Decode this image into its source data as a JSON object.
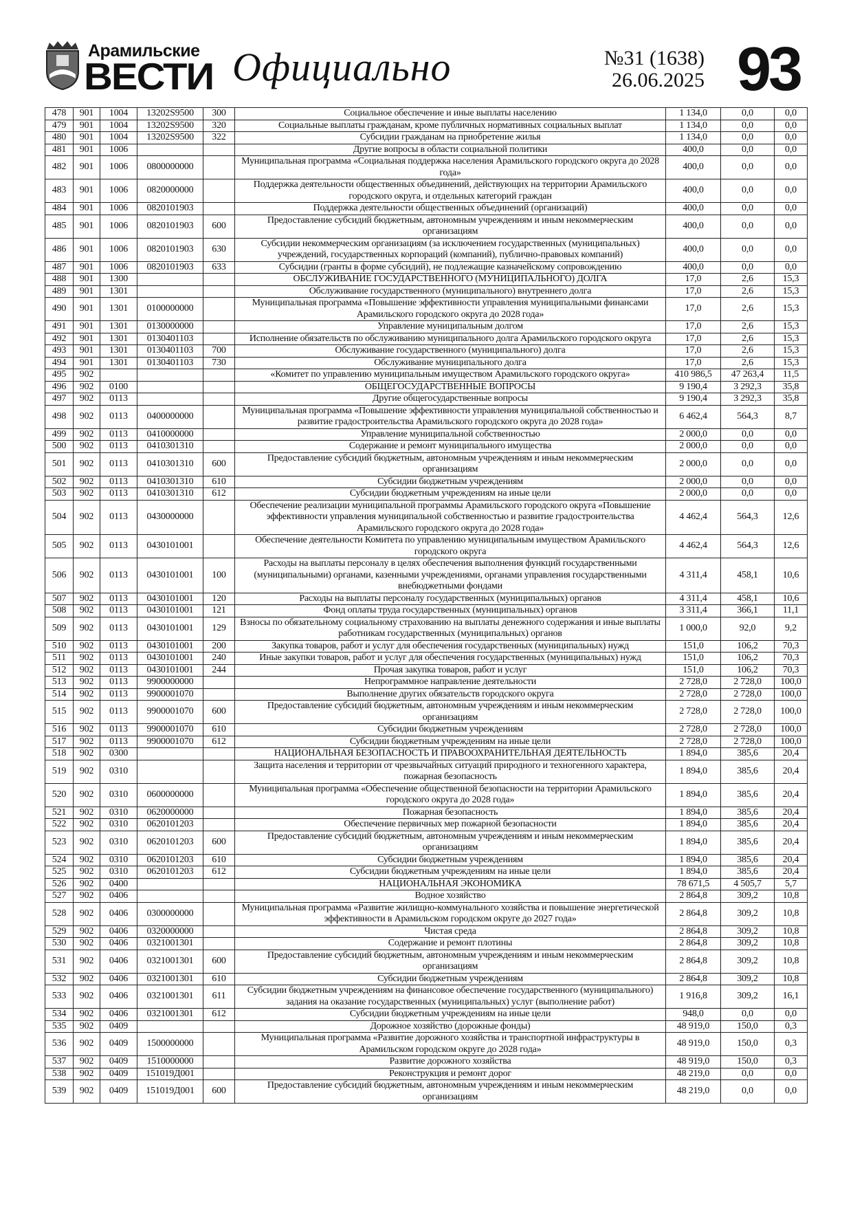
{
  "header": {
    "masthead_top": "Арамильские",
    "masthead": "ВЕСТИ",
    "section": "Официально",
    "issue": "№31 (1638)",
    "date": "26.06.2025",
    "page": "93"
  },
  "table": {
    "rows": [
      [
        "478",
        "901",
        "1004",
        "13202S9500",
        "300",
        "Социальное обеспечение и иные выплаты населению",
        "1 134,0",
        "0,0",
        "0,0"
      ],
      [
        "479",
        "901",
        "1004",
        "13202S9500",
        "320",
        "Социальные выплаты гражданам, кроме публичных нормативных социальных выплат",
        "1 134,0",
        "0,0",
        "0,0"
      ],
      [
        "480",
        "901",
        "1004",
        "13202S9500",
        "322",
        "Субсидии гражданам на приобретение жилья",
        "1 134,0",
        "0,0",
        "0,0"
      ],
      [
        "481",
        "901",
        "1006",
        null,
        null,
        "Другие вопросы в области социальной политики",
        "400,0",
        "0,0",
        "0,0"
      ],
      [
        "482",
        "901",
        "1006",
        "0800000000",
        null,
        "Муниципальная программа «Социальная поддержка населения Арамильского городского округа до 2028 года»",
        "400,0",
        "0,0",
        "0,0"
      ],
      [
        "483",
        "901",
        "1006",
        "0820000000",
        null,
        "Поддержка деятельности общественных объединений, действующих на территории Арамильского городского округа, и отдельных категорий граждан",
        "400,0",
        "0,0",
        "0,0"
      ],
      [
        "484",
        "901",
        "1006",
        "0820101903",
        null,
        "Поддержка деятельности общественных объединений (организаций)",
        "400,0",
        "0,0",
        "0,0"
      ],
      [
        "485",
        "901",
        "1006",
        "0820101903",
        "600",
        "Предоставление субсидий бюджетным, автономным учреждениям и иным некоммерческим организациям",
        "400,0",
        "0,0",
        "0,0"
      ],
      [
        "486",
        "901",
        "1006",
        "0820101903",
        "630",
        "Субсидии некоммерческим организациям (за исключением государственных (муниципальных) учреждений, государственных корпораций (компаний), публично-правовых компаний)",
        "400,0",
        "0,0",
        "0,0"
      ],
      [
        "487",
        "901",
        "1006",
        "0820101903",
        "633",
        "Субсидии (гранты в форме субсидий), не подлежащие казначейскому сопровождению",
        "400,0",
        "0,0",
        "0,0"
      ],
      [
        "488",
        "901",
        "1300",
        null,
        null,
        "ОБСЛУЖИВАНИЕ ГОСУДАРСТВЕННОГО (МУНИЦИПАЛЬНОГО) ДОЛГА",
        "17,0",
        "2,6",
        "15,3"
      ],
      [
        "489",
        "901",
        "1301",
        null,
        null,
        "Обслуживание государственного (муниципального) внутреннего долга",
        "17,0",
        "2,6",
        "15,3"
      ],
      [
        "490",
        "901",
        "1301",
        "0100000000",
        null,
        "Муниципальная программа «Повышение эффективности управления муниципальными финансами Арамильского городского округа до 2028 года»",
        "17,0",
        "2,6",
        "15,3"
      ],
      [
        "491",
        "901",
        "1301",
        "0130000000",
        null,
        "Управление муниципальным долгом",
        "17,0",
        "2,6",
        "15,3"
      ],
      [
        "492",
        "901",
        "1301",
        "0130401103",
        null,
        "Исполнение обязательств по обслуживанию муниципального долга Арамильского городского округа",
        "17,0",
        "2,6",
        "15,3"
      ],
      [
        "493",
        "901",
        "1301",
        "0130401103",
        "700",
        "Обслуживание государственного (муниципального) долга",
        "17,0",
        "2,6",
        "15,3"
      ],
      [
        "494",
        "901",
        "1301",
        "0130401103",
        "730",
        "Обслуживание муниципального долга",
        "17,0",
        "2,6",
        "15,3"
      ],
      [
        "495",
        "902",
        null,
        null,
        null,
        "«Комитет по управлению муниципальным имуществом Арамильского городского округа»",
        "410 986,5",
        "47 263,4",
        "11,5"
      ],
      [
        "496",
        "902",
        "0100",
        null,
        null,
        "ОБЩЕГОСУДАРСТВЕННЫЕ ВОПРОСЫ",
        "9 190,4",
        "3 292,3",
        "35,8"
      ],
      [
        "497",
        "902",
        "0113",
        null,
        null,
        "Другие общегосударственные вопросы",
        "9 190,4",
        "3 292,3",
        "35,8"
      ],
      [
        "498",
        "902",
        "0113",
        "0400000000",
        null,
        "Муниципальная программа «Повышение эффективности управления муниципальной собственностью и развитие градостроительства Арамильского городского округа до 2028 года»",
        "6 462,4",
        "564,3",
        "8,7"
      ],
      [
        "499",
        "902",
        "0113",
        "0410000000",
        null,
        "Управление муниципальной собственностью",
        "2 000,0",
        "0,0",
        "0,0"
      ],
      [
        "500",
        "902",
        "0113",
        "0410301310",
        null,
        "Содержание и ремонт муниципального имущества",
        "2 000,0",
        "0,0",
        "0,0"
      ],
      [
        "501",
        "902",
        "0113",
        "0410301310",
        "600",
        "Предоставление субсидий бюджетным, автономным учреждениям и иным некоммерческим организациям",
        "2 000,0",
        "0,0",
        "0,0"
      ],
      [
        "502",
        "902",
        "0113",
        "0410301310",
        "610",
        "Субсидии бюджетным учреждениям",
        "2 000,0",
        "0,0",
        "0,0"
      ],
      [
        "503",
        "902",
        "0113",
        "0410301310",
        "612",
        "Субсидии бюджетным учреждениям на иные цели",
        "2 000,0",
        "0,0",
        "0,0"
      ],
      [
        "504",
        "902",
        "0113",
        "0430000000",
        null,
        "Обеспечение реализации муниципальной программы Арамильского городского округа «Повышение эффективности управления муниципальной собственностью и развитие градостроительства Арамильского городского округа до 2028 года»",
        "4 462,4",
        "564,3",
        "12,6"
      ],
      [
        "505",
        "902",
        "0113",
        "0430101001",
        null,
        "Обеспечение деятельности Комитета по управлению муниципальным имуществом Арамильского городского округа",
        "4 462,4",
        "564,3",
        "12,6"
      ],
      [
        "506",
        "902",
        "0113",
        "0430101001",
        "100",
        "Расходы на выплаты персоналу в целях обеспечения выполнения функций государственными (муниципальными) органами, казенными учреждениями, органами управления государственными внебюджетными фондами",
        "4 311,4",
        "458,1",
        "10,6"
      ],
      [
        "507",
        "902",
        "0113",
        "0430101001",
        "120",
        "Расходы на выплаты персоналу государственных (муниципальных) органов",
        "4 311,4",
        "458,1",
        "10,6"
      ],
      [
        "508",
        "902",
        "0113",
        "0430101001",
        "121",
        "Фонд оплаты труда государственных (муниципальных) органов",
        "3 311,4",
        "366,1",
        "11,1"
      ],
      [
        "509",
        "902",
        "0113",
        "0430101001",
        "129",
        "Взносы по обязательному социальному страхованию на выплаты денежного содержания и иные выплаты работникам государственных (муниципальных) органов",
        "1 000,0",
        "92,0",
        "9,2"
      ],
      [
        "510",
        "902",
        "0113",
        "0430101001",
        "200",
        "Закупка товаров, работ и услуг для обеспечения государственных (муниципальных) нужд",
        "151,0",
        "106,2",
        "70,3"
      ],
      [
        "511",
        "902",
        "0113",
        "0430101001",
        "240",
        "Иные закупки товаров, работ и услуг для обеспечения государственных (муниципальных) нужд",
        "151,0",
        "106,2",
        "70,3"
      ],
      [
        "512",
        "902",
        "0113",
        "0430101001",
        "244",
        "Прочая закупка товаров, работ и услуг",
        "151,0",
        "106,2",
        "70,3"
      ],
      [
        "513",
        "902",
        "0113",
        "9900000000",
        null,
        "Непрограммное направление деятельности",
        "2 728,0",
        "2 728,0",
        "100,0"
      ],
      [
        "514",
        "902",
        "0113",
        "9900001070",
        null,
        "Выполнение других обязательств городского округа",
        "2 728,0",
        "2 728,0",
        "100,0"
      ],
      [
        "515",
        "902",
        "0113",
        "9900001070",
        "600",
        "Предоставление субсидий бюджетным, автономным учреждениям и иным некоммерческим организациям",
        "2 728,0",
        "2 728,0",
        "100,0"
      ],
      [
        "516",
        "902",
        "0113",
        "9900001070",
        "610",
        "Субсидии бюджетным учреждениям",
        "2 728,0",
        "2 728,0",
        "100,0"
      ],
      [
        "517",
        "902",
        "0113",
        "9900001070",
        "612",
        "Субсидии бюджетным учреждениям на иные цели",
        "2 728,0",
        "2 728,0",
        "100,0"
      ],
      [
        "518",
        "902",
        "0300",
        null,
        null,
        "НАЦИОНАЛЬНАЯ БЕЗОПАСНОСТЬ И ПРАВООХРАНИТЕЛЬНАЯ ДЕЯТЕЛЬНОСТЬ",
        "1 894,0",
        "385,6",
        "20,4"
      ],
      [
        "519",
        "902",
        "0310",
        null,
        null,
        "Защита населения и территории от чрезвычайных ситуаций природного и техногенного характера, пожарная безопасность",
        "1 894,0",
        "385,6",
        "20,4"
      ],
      [
        "520",
        "902",
        "0310",
        "0600000000",
        null,
        "Муниципальная программа «Обеспечение общественной безопасности на территории Арамильского городского округа до 2028 года»",
        "1 894,0",
        "385,6",
        "20,4"
      ],
      [
        "521",
        "902",
        "0310",
        "0620000000",
        null,
        "Пожарная безопасность",
        "1 894,0",
        "385,6",
        "20,4"
      ],
      [
        "522",
        "902",
        "0310",
        "0620101203",
        null,
        "Обеспечение первичных мер пожарной безопасности",
        "1 894,0",
        "385,6",
        "20,4"
      ],
      [
        "523",
        "902",
        "0310",
        "0620101203",
        "600",
        "Предоставление субсидий бюджетным, автономным учреждениям и иным некоммерческим организациям",
        "1 894,0",
        "385,6",
        "20,4"
      ],
      [
        "524",
        "902",
        "0310",
        "0620101203",
        "610",
        "Субсидии бюджетным учреждениям",
        "1 894,0",
        "385,6",
        "20,4"
      ],
      [
        "525",
        "902",
        "0310",
        "0620101203",
        "612",
        "Субсидии бюджетным учреждениям на иные цели",
        "1 894,0",
        "385,6",
        "20,4"
      ],
      [
        "526",
        "902",
        "0400",
        null,
        null,
        "НАЦИОНАЛЬНАЯ ЭКОНОМИКА",
        "78 671,5",
        "4 505,7",
        "5,7"
      ],
      [
        "527",
        "902",
        "0406",
        null,
        null,
        "Водное хозяйство",
        "2 864,8",
        "309,2",
        "10,8"
      ],
      [
        "528",
        "902",
        "0406",
        "0300000000",
        null,
        "Муниципальная программа «Развитие жилищно-коммунального хозяйства и повышение энергетической эффективности в Арамильском городском округе до 2027 года»",
        "2 864,8",
        "309,2",
        "10,8"
      ],
      [
        "529",
        "902",
        "0406",
        "0320000000",
        null,
        "Чистая среда",
        "2 864,8",
        "309,2",
        "10,8"
      ],
      [
        "530",
        "902",
        "0406",
        "0321001301",
        null,
        "Содержание и ремонт плотины",
        "2 864,8",
        "309,2",
        "10,8"
      ],
      [
        "531",
        "902",
        "0406",
        "0321001301",
        "600",
        "Предоставление субсидий бюджетным, автономным учреждениям и иным некоммерческим организациям",
        "2 864,8",
        "309,2",
        "10,8"
      ],
      [
        "532",
        "902",
        "0406",
        "0321001301",
        "610",
        "Субсидии бюджетным учреждениям",
        "2 864,8",
        "309,2",
        "10,8"
      ],
      [
        "533",
        "902",
        "0406",
        "0321001301",
        "611",
        "Субсидии бюджетным учреждениям на финансовое обеспечение государственного (муниципального) задания на оказание государственных (муниципальных) услуг (выполнение работ)",
        "1 916,8",
        "309,2",
        "16,1"
      ],
      [
        "534",
        "902",
        "0406",
        "0321001301",
        "612",
        "Субсидии бюджетным учреждениям на иные цели",
        "948,0",
        "0,0",
        "0,0"
      ],
      [
        "535",
        "902",
        "0409",
        null,
        null,
        "Дорожное хозяйство (дорожные фонды)",
        "48 919,0",
        "150,0",
        "0,3"
      ],
      [
        "536",
        "902",
        "0409",
        "1500000000",
        null,
        "Муниципальная программа «Развитие дорожного хозяйства и транспортной инфраструктуры в Арамильском городском округе до 2028 года»",
        "48 919,0",
        "150,0",
        "0,3"
      ],
      [
        "537",
        "902",
        "0409",
        "1510000000",
        null,
        "Развитие дорожного хозяйства",
        "48 919,0",
        "150,0",
        "0,3"
      ],
      [
        "538",
        "902",
        "0409",
        "151019Д001",
        null,
        "Реконструкция и ремонт дорог",
        "48 219,0",
        "0,0",
        "0,0"
      ],
      [
        "539",
        "902",
        "0409",
        "151019Д001",
        "600",
        "Предоставление субсидий бюджетным, автономным учреждениям и иным некоммерческим организациям",
        "48 219,0",
        "0,0",
        "0,0"
      ]
    ]
  }
}
